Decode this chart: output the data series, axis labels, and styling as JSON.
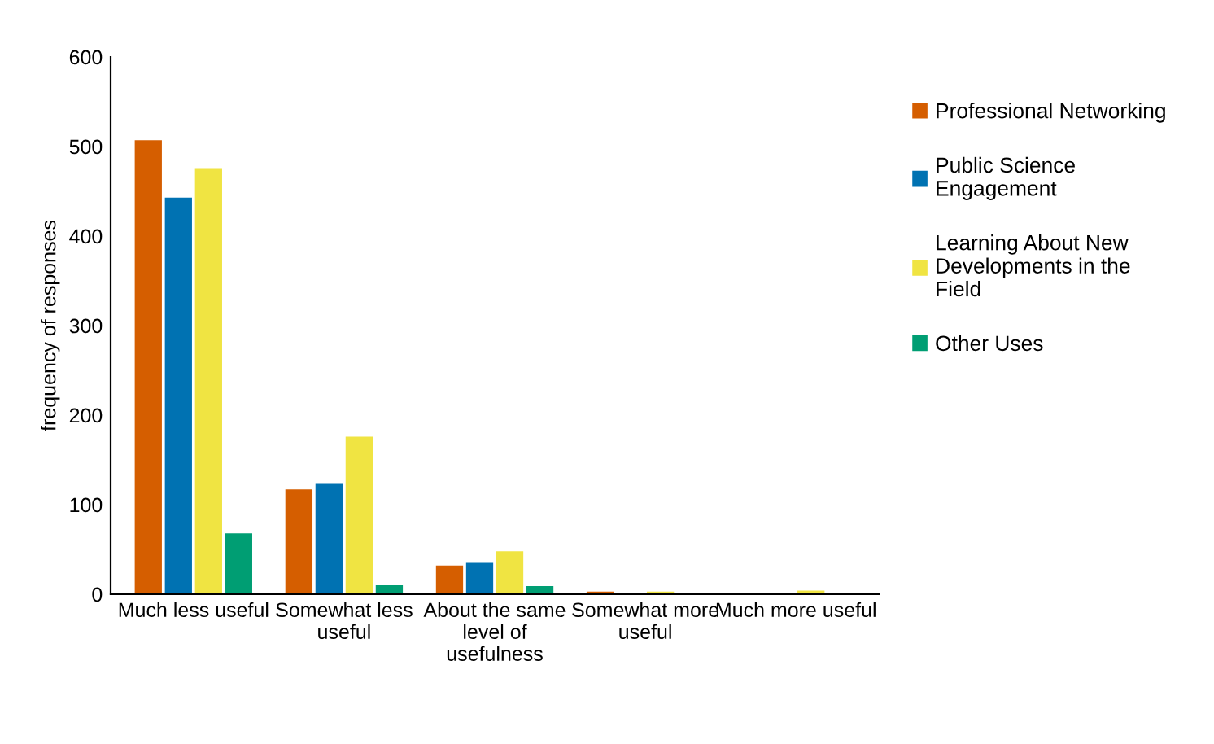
{
  "chart_data": {
    "type": "bar",
    "ylabel": "frequency of responses",
    "categories": [
      "Much less useful",
      "Somewhat less useful",
      "About the same level of usefulness",
      "Somewhat more useful",
      "Much more useful"
    ],
    "series": [
      {
        "name": "Professional Networking",
        "color": "#d55e00",
        "values": [
          507,
          117,
          32,
          3,
          0
        ]
      },
      {
        "name": "Public Science Engagement",
        "color": "#0072b2",
        "values": [
          443,
          124,
          35,
          0,
          0
        ]
      },
      {
        "name": "Learning About New Developments in the Field",
        "color": "#f0e442",
        "values": [
          475,
          176,
          48,
          3,
          4
        ]
      },
      {
        "name": "Other Uses",
        "color": "#009e73",
        "values": [
          68,
          10,
          9,
          0,
          0
        ]
      }
    ],
    "ylim": [
      0,
      600
    ],
    "yticks": [
      0,
      100,
      200,
      300,
      400,
      500,
      600
    ],
    "grid": false,
    "legend": "right"
  }
}
